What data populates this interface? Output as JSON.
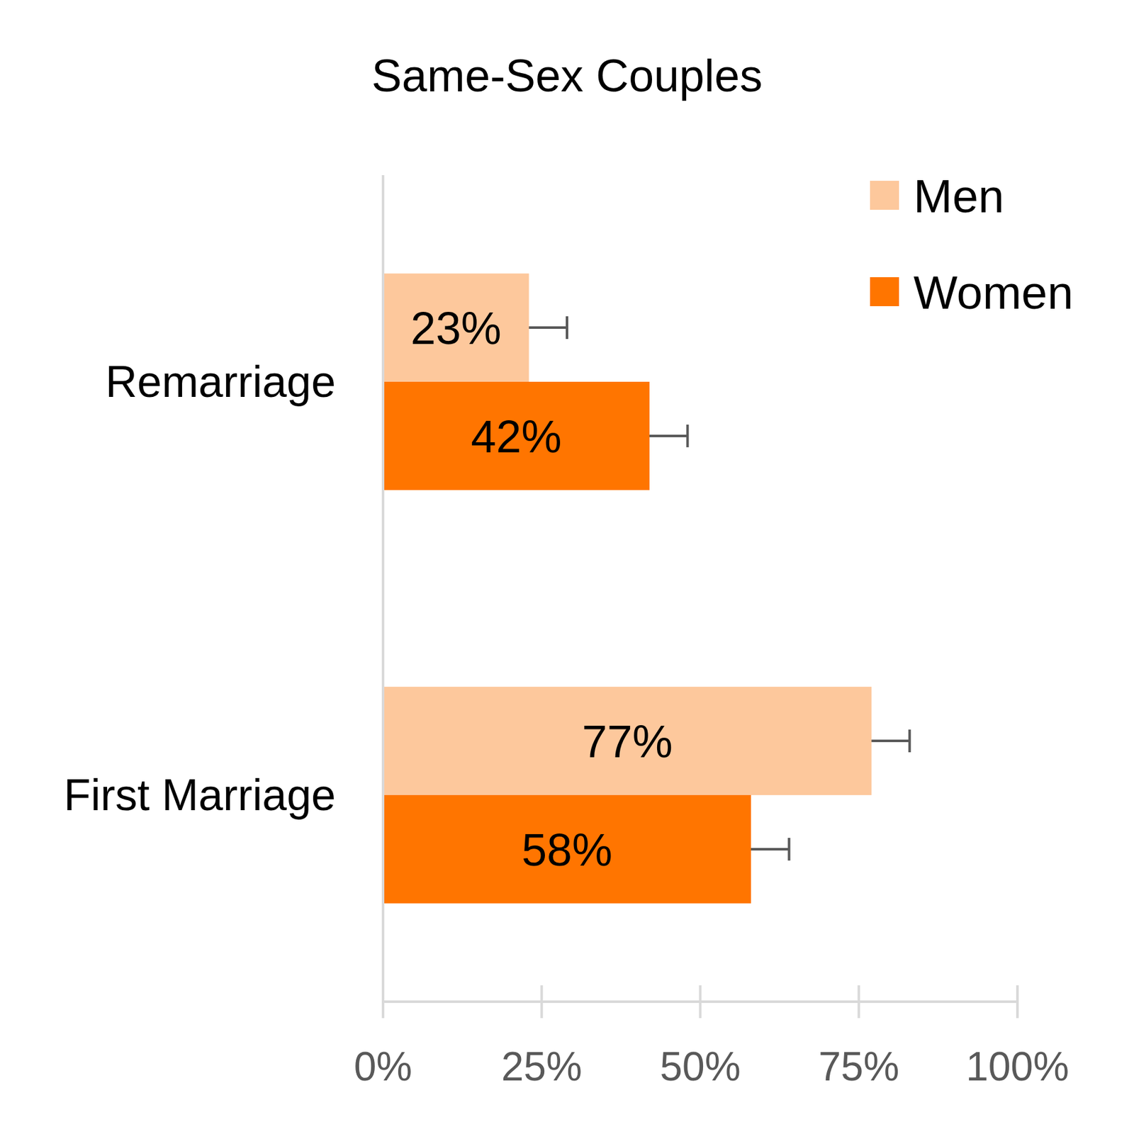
{
  "chart_data": {
    "type": "bar",
    "title": "Same-Sex Couples",
    "orientation": "horizontal",
    "categories": [
      "Remarriage",
      "First Marriage"
    ],
    "series": [
      {
        "name": "Men",
        "color": "#fdc89c",
        "values": [
          23,
          77
        ],
        "value_labels": [
          "23%",
          "77%"
        ],
        "errors": [
          6,
          6
        ]
      },
      {
        "name": "Women",
        "color": "#ff7500",
        "values": [
          42,
          58
        ],
        "value_labels": [
          "42%",
          "58%"
        ],
        "errors": [
          6,
          6
        ]
      }
    ],
    "xlim": [
      0,
      100
    ],
    "xticks": [
      {
        "value": 0,
        "label": "0%"
      },
      {
        "value": 25,
        "label": "25%"
      },
      {
        "value": 50,
        "label": "50%"
      },
      {
        "value": 75,
        "label": "75%"
      },
      {
        "value": 100,
        "label": "100%"
      }
    ],
    "grid": false,
    "legend": "top-right",
    "data_labels": true
  }
}
